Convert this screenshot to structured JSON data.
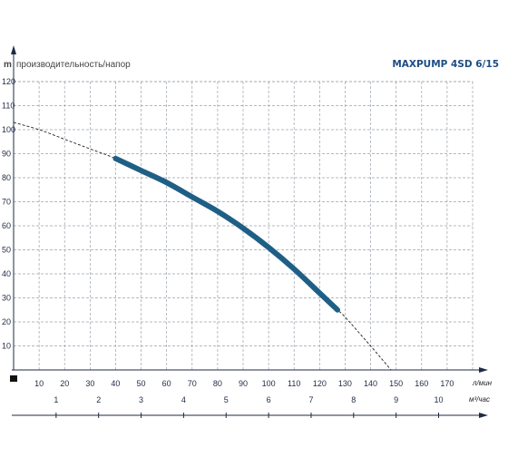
{
  "chart_data": {
    "type": "line",
    "title": "MAXPUMP 4SD 6/15",
    "ylabel": "производительность/напор",
    "yunit": "m",
    "xunit_lmin": "л/мин",
    "xunit_m3h": "м³/час",
    "ylim": [
      0,
      120
    ],
    "yticks": [
      0,
      10,
      20,
      30,
      40,
      50,
      60,
      70,
      80,
      90,
      100,
      110,
      120
    ],
    "xlim_lmin": [
      0,
      180
    ],
    "xticks_lmin": [
      10,
      20,
      30,
      40,
      50,
      60,
      70,
      80,
      90,
      100,
      110,
      120,
      130,
      140,
      150,
      160,
      170
    ],
    "xticks_m3h": [
      1,
      2,
      3,
      4,
      5,
      6,
      7,
      8,
      9,
      10
    ],
    "grid": true,
    "series": [
      {
        "style": "dashed",
        "color": "#222222",
        "x": [
          0,
          10,
          20,
          30,
          40,
          50,
          60,
          70,
          80,
          90,
          100,
          110,
          120,
          127,
          130,
          140,
          148
        ],
        "y": [
          103,
          100,
          96,
          92,
          88,
          83,
          78,
          72,
          66,
          59,
          51,
          42,
          32,
          25,
          22,
          10,
          0
        ]
      },
      {
        "style": "solid-thick",
        "color": "#1f5f86",
        "x": [
          40,
          50,
          60,
          70,
          80,
          90,
          100,
          110,
          120,
          127
        ],
        "y": [
          88,
          83,
          78,
          72,
          66,
          59,
          51,
          42,
          32,
          25
        ]
      }
    ]
  },
  "colors": {
    "grid": "#9aa2ad",
    "axis": "#1f2a44",
    "curve": "#1f5f86",
    "title": "#1e4e84"
  }
}
